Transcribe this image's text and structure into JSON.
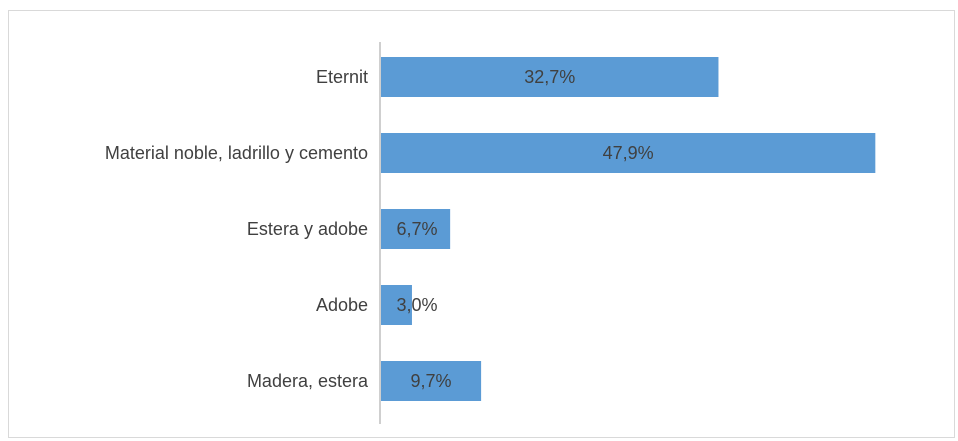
{
  "chart_data": {
    "type": "bar",
    "orientation": "horizontal",
    "categories": [
      "Eternit",
      "Material noble, ladrillo y cemento",
      "Estera y adobe",
      "Adobe",
      "Madera, estera"
    ],
    "values": [
      32.7,
      47.9,
      6.7,
      3.0,
      9.7
    ],
    "data_labels": [
      "32,7%",
      "47,9%",
      "6,7%",
      "3,0%",
      "9,7%"
    ],
    "unit": "%",
    "xlim": [
      0,
      50
    ],
    "grid": false,
    "legend": "none",
    "bar_color": "#5b9bd5",
    "axis_color": "#bfbfbf",
    "label_color": "#404040"
  }
}
